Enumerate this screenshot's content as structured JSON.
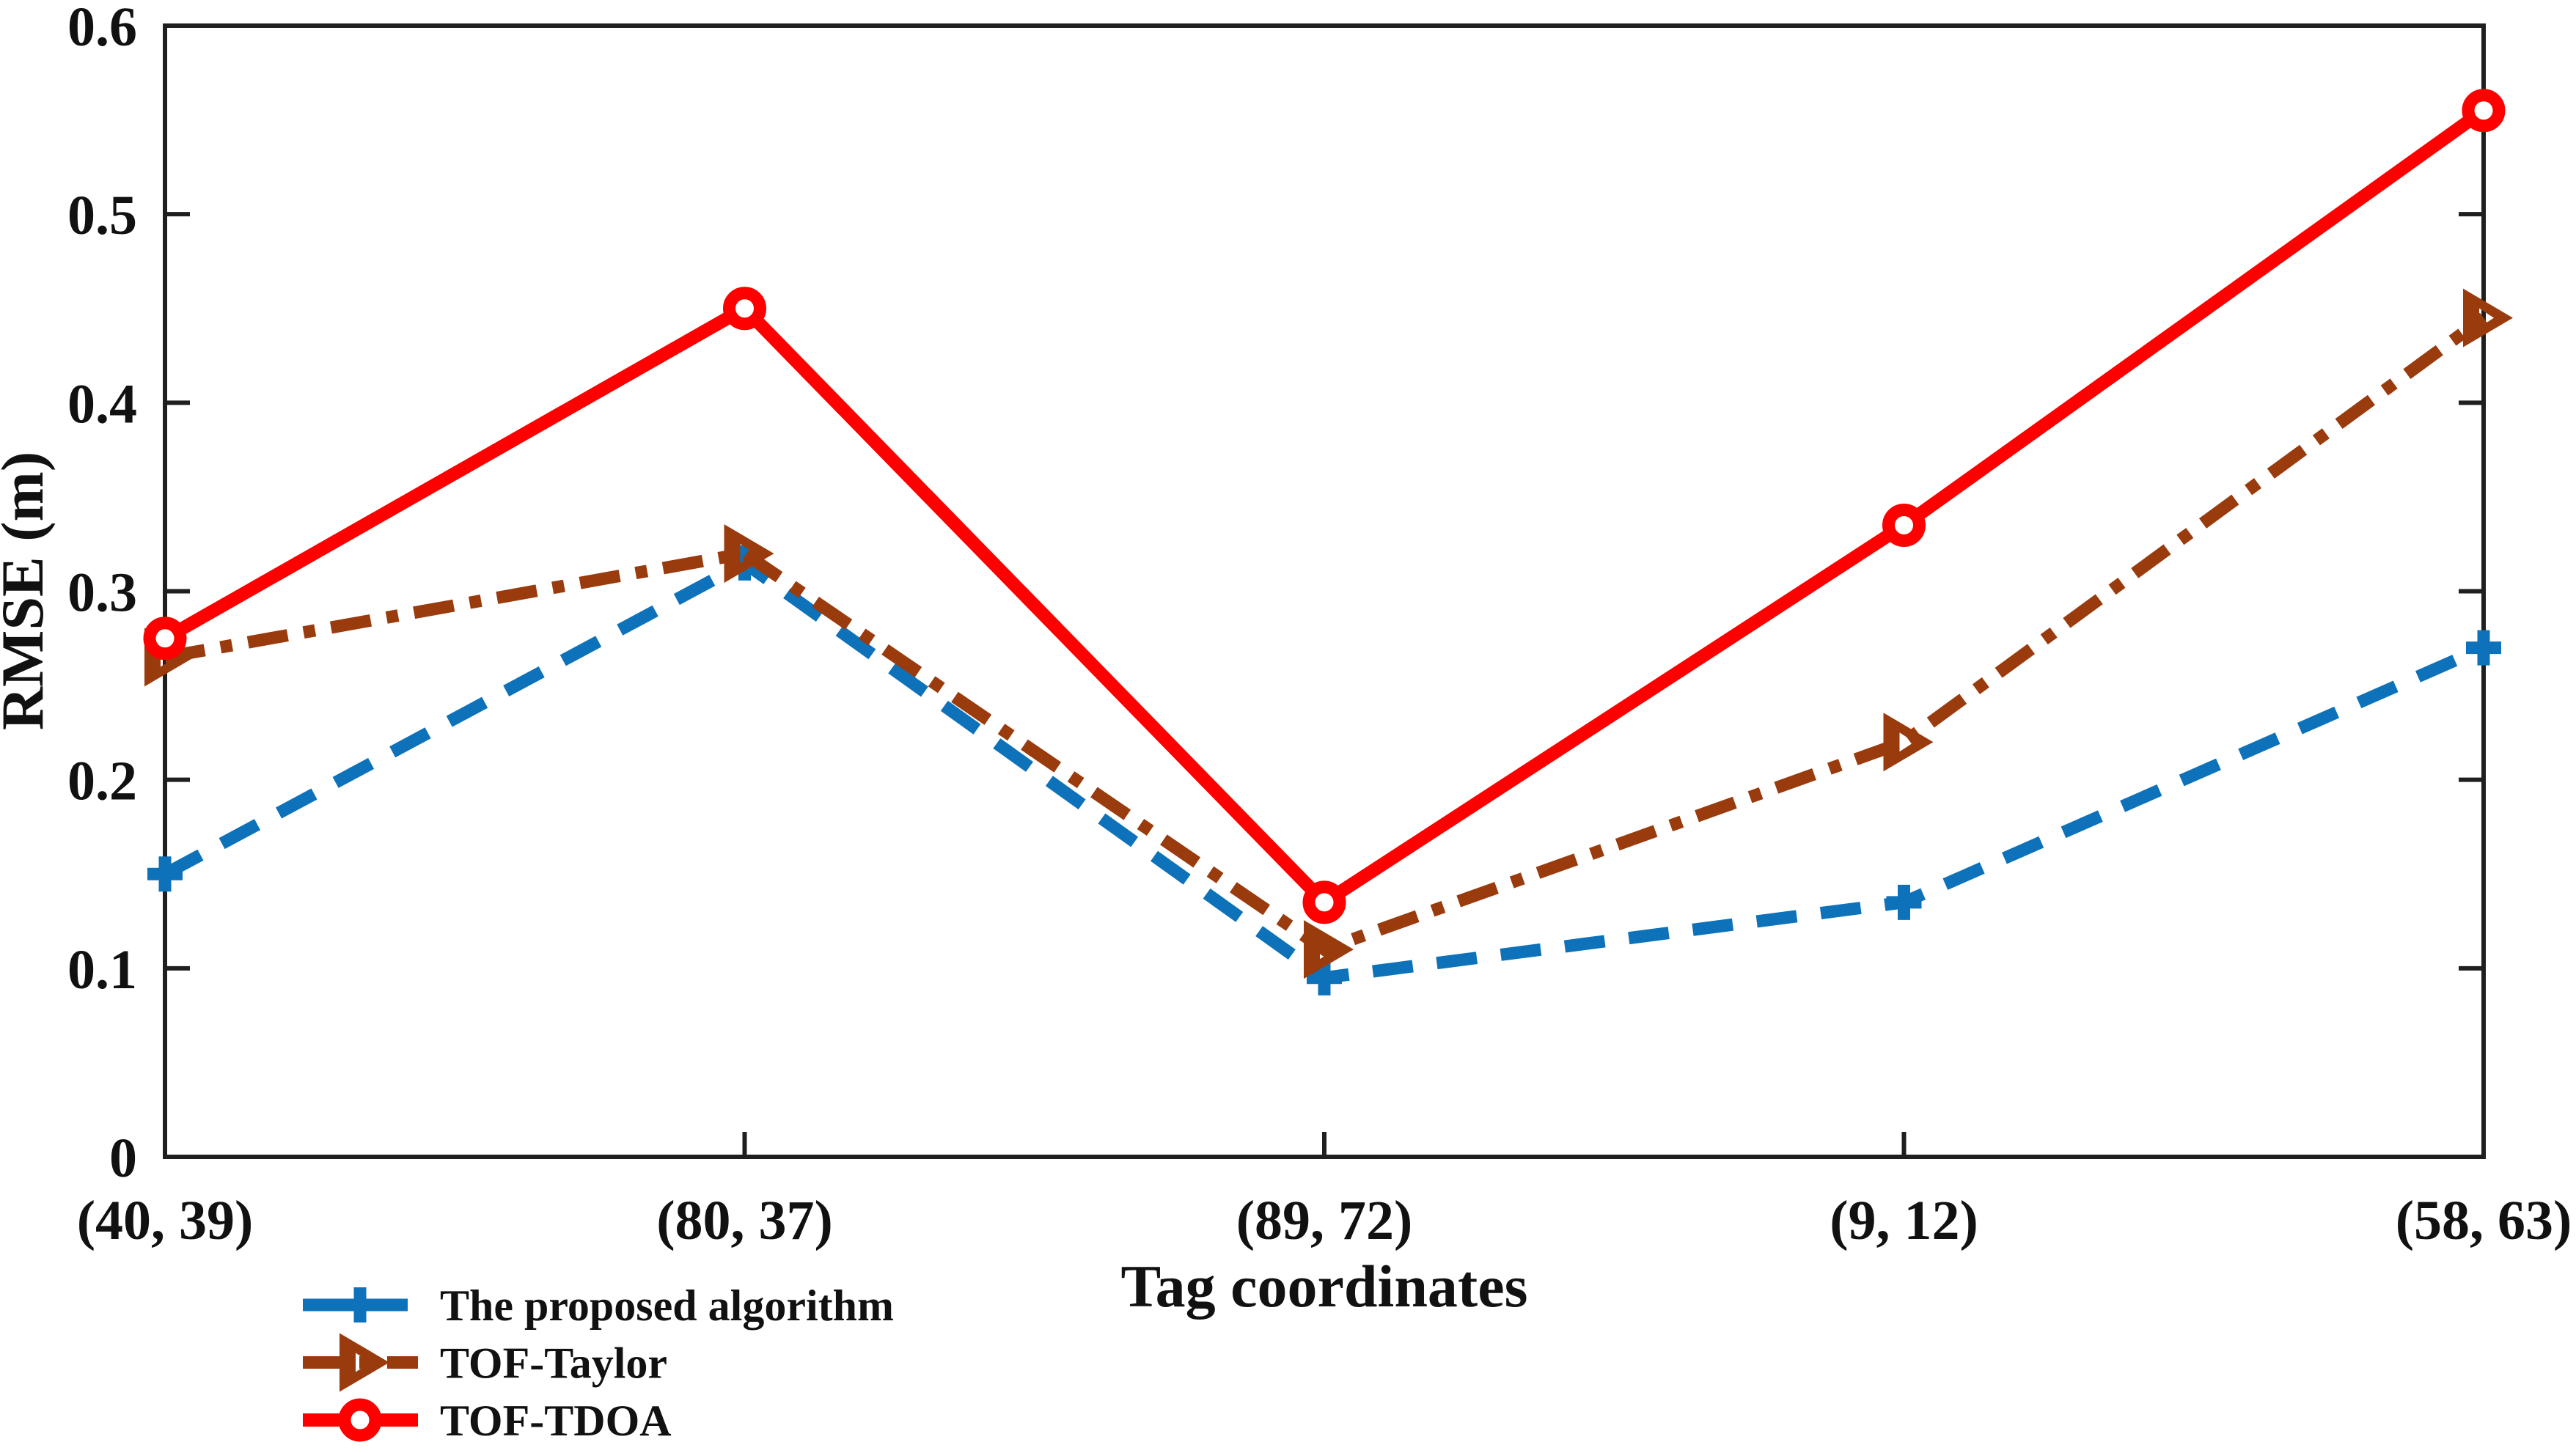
{
  "figure": {
    "background": "#ffffff",
    "axis_color": "#1f1f1f"
  },
  "chart_data": {
    "type": "line",
    "title": "",
    "xlabel": "Tag coordinates",
    "ylabel": "RMSE (m)",
    "categories": [
      "(40, 39)",
      "(80, 37)",
      "(89, 72)",
      "(9, 12)",
      "(58, 63)"
    ],
    "ylim": [
      0,
      0.6
    ],
    "yticks": [
      0,
      0.1,
      0.2,
      0.3,
      0.4,
      0.5,
      0.6
    ],
    "ytick_labels": [
      "0",
      "0.1",
      "0.2",
      "0.3",
      "0.4",
      "0.5",
      "0.6"
    ],
    "grid": false,
    "legend_position": "below-plot-left",
    "series": [
      {
        "key": "proposed",
        "name": "The proposed algorithm",
        "color": "#0D72B9",
        "line_style": "dashed",
        "marker": "plus",
        "values": [
          0.15,
          0.315,
          0.095,
          0.135,
          0.27
        ]
      },
      {
        "key": "tof-taylor",
        "name": "TOF-Taylor",
        "color": "#9A3B0D",
        "line_style": "dash-dot",
        "marker": "triangle-right",
        "values": [
          0.265,
          0.32,
          0.11,
          0.22,
          0.445
        ]
      },
      {
        "key": "tof-tdoa",
        "name": "TOF-TDOA",
        "color": "#FE0000",
        "line_style": "solid",
        "marker": "circle",
        "values": [
          0.275,
          0.45,
          0.135,
          0.335,
          0.555
        ]
      }
    ]
  }
}
